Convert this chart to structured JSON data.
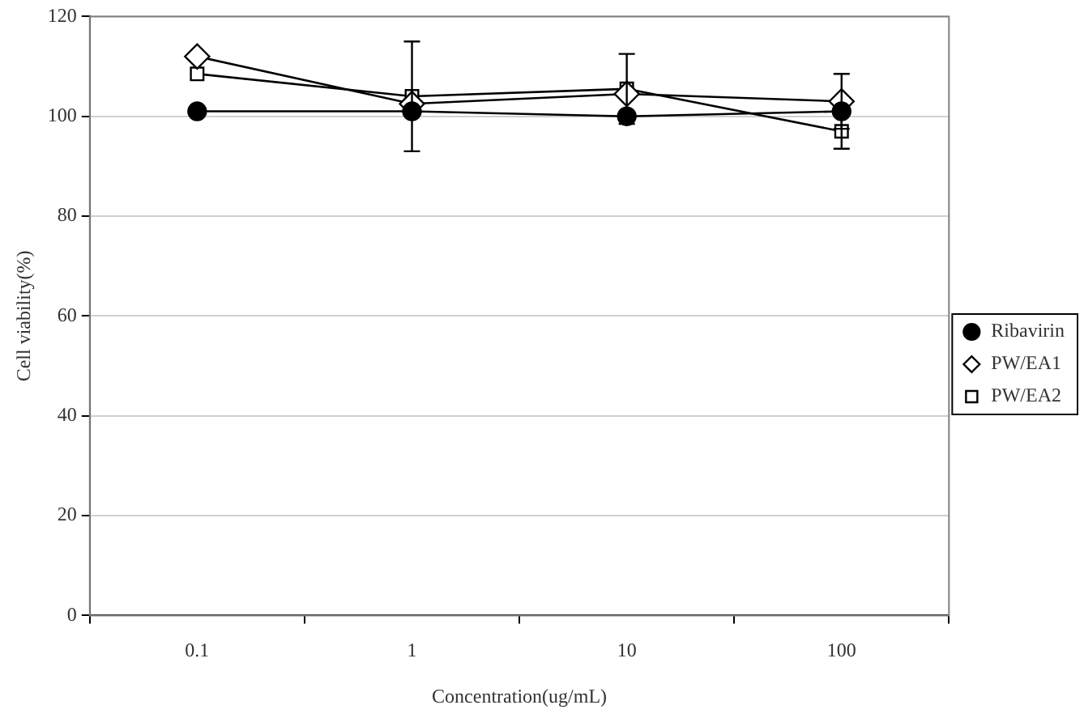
{
  "chart_data": {
    "type": "line",
    "xlabel": "Concentration(ug/mL)",
    "ylabel": "Cell viability(%)",
    "categories": [
      "0.1",
      "1",
      "10",
      "100"
    ],
    "series": [
      {
        "name": "Ribavirin",
        "color": "#000000",
        "marker": "circle",
        "values": [
          101,
          101,
          100,
          101
        ]
      },
      {
        "name": "PW/EA1",
        "color": "#000000",
        "marker": "diamond",
        "values": [
          112,
          102.5,
          104.5,
          103
        ],
        "errors": [
          null,
          null,
          null,
          5.5
        ]
      },
      {
        "name": "PW/EA2",
        "color": "#000000",
        "marker": "square",
        "values": [
          108.5,
          104,
          105.5,
          97
        ],
        "errors": [
          null,
          11,
          7,
          3.5
        ]
      }
    ],
    "ylim": [
      0,
      120
    ],
    "yticks": [
      0,
      20,
      40,
      60,
      80,
      100,
      120
    ],
    "grid": "y",
    "legend": "right",
    "line_style": "solid"
  }
}
